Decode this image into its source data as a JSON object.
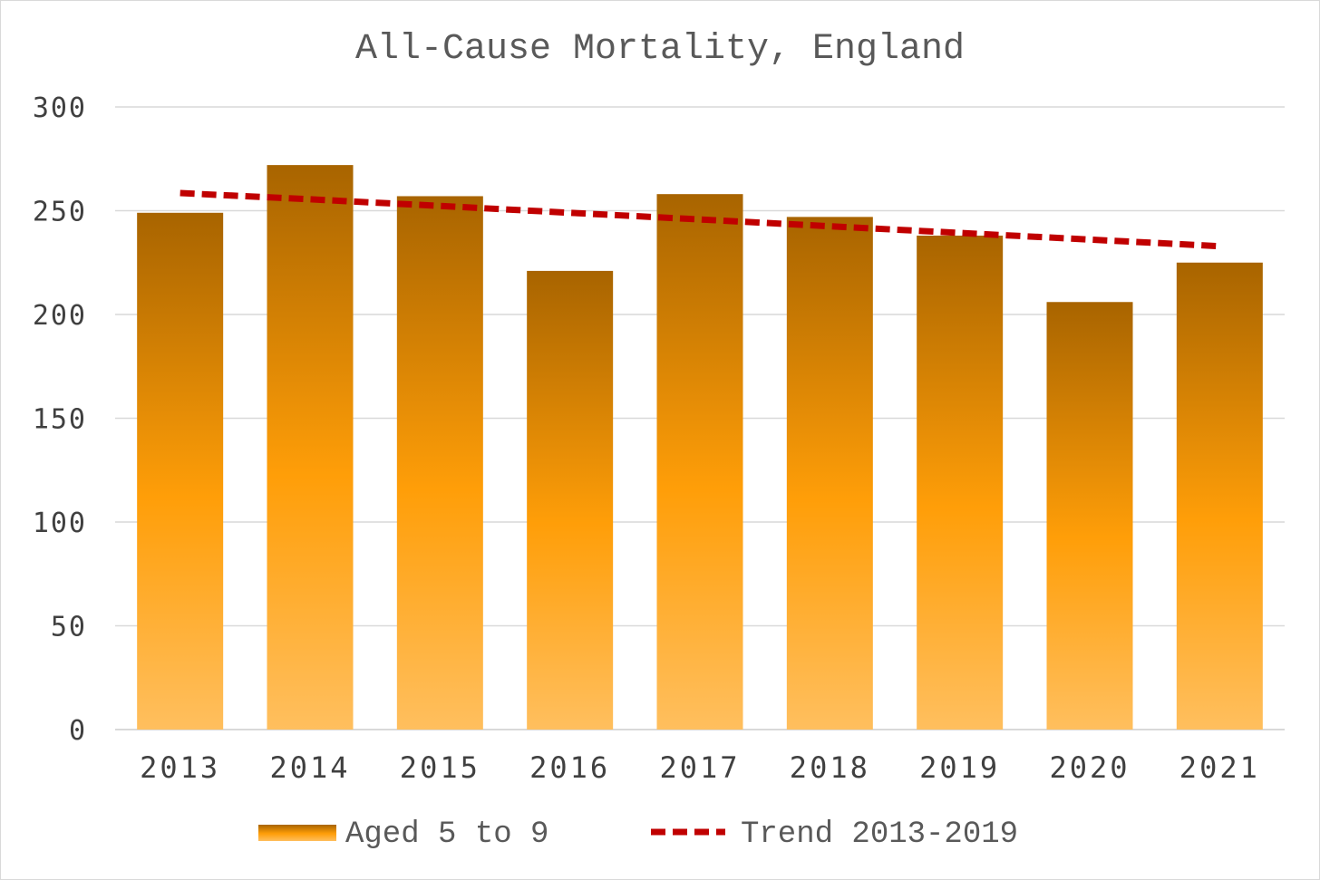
{
  "chart_data": {
    "type": "bar",
    "title": "All-Cause Mortality, England",
    "xlabel": "",
    "ylabel": "",
    "categories": [
      "2013",
      "2014",
      "2015",
      "2016",
      "2017",
      "2018",
      "2019",
      "2020",
      "2021"
    ],
    "series": [
      {
        "name": "Aged 5 to 9",
        "type": "bar",
        "values": [
          249,
          272,
          257,
          221,
          258,
          247,
          238,
          206,
          225
        ],
        "color_top": "#a86400",
        "color_mid": "#ff9e08",
        "color_bottom": "#ffbf5e"
      },
      {
        "name": "Trend 2013-2019",
        "type": "line",
        "style": "dashed",
        "values": [
          258.5,
          255.5,
          252.3,
          249.0,
          245.8,
          242.5,
          239.3,
          236.1,
          232.9
        ],
        "color": "#c00000"
      }
    ],
    "ylim": [
      0,
      300
    ],
    "yticks": [
      "0",
      "50",
      "100",
      "150",
      "200",
      "250",
      "300"
    ],
    "grid": true,
    "legend_position": "bottom"
  },
  "colors": {
    "grid": "#d9d9d9",
    "axis": "#d9d9d9"
  }
}
